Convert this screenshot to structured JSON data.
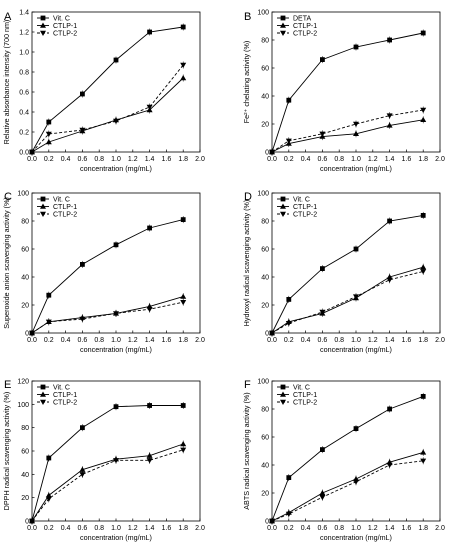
{
  "chart_data": [
    {
      "type": "line",
      "letter": "A",
      "xlabel": "concentration (mg/mL)",
      "ylabel": "Relative absorbance intensity (700 nm)",
      "xlim": [
        0.0,
        2.0
      ],
      "ylim": [
        0.0,
        1.4
      ],
      "xticks": [
        "0.0",
        "0.2",
        "0.4",
        "0.6",
        "0.8",
        "1.0",
        "1.2",
        "1.4",
        "1.6",
        "1.8",
        "2.0"
      ],
      "yticks": [
        "0.0",
        "0.2",
        "0.4",
        "0.6",
        "0.8",
        "1.0",
        "1.2",
        "1.4"
      ],
      "legend": "top-left",
      "x": [
        0,
        0.2,
        0.6,
        1.0,
        1.4,
        1.8
      ],
      "series": [
        {
          "name": "Vit. C",
          "marker": "square",
          "dash": "solid",
          "values": [
            0,
            0.3,
            0.58,
            0.92,
            1.2,
            1.25
          ]
        },
        {
          "name": "CTLP-1",
          "marker": "triangle-up",
          "dash": "solid",
          "values": [
            0,
            0.1,
            0.21,
            0.32,
            0.42,
            0.74
          ]
        },
        {
          "name": "CTLP-2",
          "marker": "triangle-down",
          "dash": "dashed",
          "values": [
            0,
            0.18,
            0.22,
            0.31,
            0.45,
            0.87
          ]
        }
      ]
    },
    {
      "type": "line",
      "letter": "B",
      "xlabel": "concentration (mg/mL)",
      "ylabel": "Fe²⁺ chelating activity (%)",
      "xlim": [
        0.0,
        2.0
      ],
      "ylim": [
        0,
        100
      ],
      "xticks": [
        "0.0",
        "0.2",
        "0.4",
        "0.6",
        "0.8",
        "1.0",
        "1.2",
        "1.4",
        "1.6",
        "1.8",
        "2.0"
      ],
      "yticks": [
        "0",
        "20",
        "40",
        "60",
        "80",
        "100"
      ],
      "legend": "top-left",
      "x": [
        0,
        0.2,
        0.6,
        1.0,
        1.4,
        1.8
      ],
      "series": [
        {
          "name": "DETA",
          "marker": "square",
          "dash": "solid",
          "values": [
            0,
            37,
            66,
            75,
            80,
            85
          ]
        },
        {
          "name": "CTLP-1",
          "marker": "triangle-up",
          "dash": "solid",
          "values": [
            0,
            6,
            11,
            13,
            19,
            23
          ]
        },
        {
          "name": "CTLP-2",
          "marker": "triangle-down",
          "dash": "dashed",
          "values": [
            0,
            8,
            13,
            20,
            26,
            30
          ]
        }
      ]
    },
    {
      "type": "line",
      "letter": "C",
      "xlabel": "concentration (mg/mL)",
      "ylabel": "Superoxide anion scavenging activity (%)",
      "xlim": [
        0.0,
        2.0
      ],
      "ylim": [
        0,
        100
      ],
      "xticks": [
        "0.0",
        "0.2",
        "0.4",
        "0.6",
        "0.8",
        "1.0",
        "1.2",
        "1.4",
        "1.6",
        "1.8",
        "2.0"
      ],
      "yticks": [
        "0",
        "20",
        "40",
        "60",
        "80",
        "100"
      ],
      "legend": "top-left",
      "x": [
        0,
        0.2,
        0.6,
        1.0,
        1.4,
        1.8
      ],
      "series": [
        {
          "name": "Vit. C",
          "marker": "square",
          "dash": "solid",
          "values": [
            0,
            27,
            49,
            63,
            75,
            81
          ]
        },
        {
          "name": "CTLP-1",
          "marker": "triangle-up",
          "dash": "solid",
          "values": [
            0,
            8,
            11,
            14,
            19,
            26
          ]
        },
        {
          "name": "CTLP-2",
          "marker": "triangle-down",
          "dash": "dashed",
          "values": [
            0,
            8,
            10,
            14,
            17,
            22
          ]
        }
      ]
    },
    {
      "type": "line",
      "letter": "D",
      "xlabel": "concentration (mg/mL)",
      "ylabel": "Hydroxyl radical scavenging activity (%)",
      "xlim": [
        0.0,
        2.0
      ],
      "ylim": [
        0,
        100
      ],
      "xticks": [
        "0.0",
        "0.2",
        "0.4",
        "0.6",
        "0.8",
        "1.0",
        "1.2",
        "1.4",
        "1.6",
        "1.8",
        "2.0"
      ],
      "yticks": [
        "0",
        "20",
        "40",
        "60",
        "80",
        "100"
      ],
      "legend": "top-left",
      "x": [
        0,
        0.2,
        0.6,
        1.0,
        1.4,
        1.8
      ],
      "series": [
        {
          "name": "Vit. C",
          "marker": "square",
          "dash": "solid",
          "values": [
            0,
            24,
            46,
            60,
            80,
            84
          ]
        },
        {
          "name": "CTLP-1",
          "marker": "triangle-up",
          "dash": "solid",
          "values": [
            0,
            8,
            14,
            25,
            40,
            47
          ]
        },
        {
          "name": "CTLP-2",
          "marker": "triangle-down",
          "dash": "dashed",
          "values": [
            0,
            7,
            15,
            26,
            38,
            44
          ]
        }
      ]
    },
    {
      "type": "line",
      "letter": "E",
      "xlabel": "concentration (mg/mL)",
      "ylabel": "DPPH radical scavenging activity (%)",
      "xlim": [
        0.0,
        2.0
      ],
      "ylim": [
        0,
        120
      ],
      "xticks": [
        "0.0",
        "0.2",
        "0.4",
        "0.6",
        "0.8",
        "1.0",
        "1.2",
        "1.4",
        "1.6",
        "1.8",
        "2.0"
      ],
      "yticks": [
        "0",
        "20",
        "40",
        "60",
        "80",
        "100",
        "120"
      ],
      "legend": "top-left",
      "x": [
        0,
        0.2,
        0.6,
        1.0,
        1.4,
        1.8
      ],
      "series": [
        {
          "name": "Vit. C",
          "marker": "square",
          "dash": "solid",
          "values": [
            0,
            54,
            80,
            98,
            99,
            99
          ]
        },
        {
          "name": "CTLP-1",
          "marker": "triangle-up",
          "dash": "solid",
          "values": [
            0,
            22,
            44,
            53,
            56,
            66
          ]
        },
        {
          "name": "CTLP-2",
          "marker": "triangle-down",
          "dash": "dashed",
          "values": [
            0,
            19,
            40,
            52,
            52,
            61
          ]
        }
      ]
    },
    {
      "type": "line",
      "letter": "F",
      "xlabel": "concentration (mg/mL)",
      "ylabel": "ABTS radical scavenging activity (%)",
      "xlim": [
        0.0,
        2.0
      ],
      "ylim": [
        0,
        100
      ],
      "xticks": [
        "0.0",
        "0.2",
        "0.4",
        "0.6",
        "0.8",
        "1.0",
        "1.2",
        "1.4",
        "1.6",
        "1.8",
        "2.0"
      ],
      "yticks": [
        "0",
        "20",
        "40",
        "60",
        "80",
        "100"
      ],
      "legend": "top-left",
      "x": [
        0,
        0.2,
        0.6,
        1.0,
        1.4,
        1.8
      ],
      "series": [
        {
          "name": "Vit. C",
          "marker": "square",
          "dash": "solid",
          "values": [
            0,
            31,
            51,
            66,
            80,
            89
          ]
        },
        {
          "name": "CTLP-1",
          "marker": "triangle-up",
          "dash": "solid",
          "values": [
            0,
            6,
            20,
            30,
            42,
            49
          ]
        },
        {
          "name": "CTLP-2",
          "marker": "triangle-down",
          "dash": "dashed",
          "values": [
            0,
            5,
            17,
            28,
            40,
            43
          ]
        }
      ]
    }
  ]
}
